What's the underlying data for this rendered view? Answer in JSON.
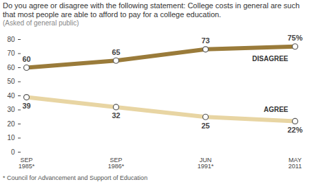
{
  "chart_data": {
    "type": "line",
    "title": "Do you agree or disagree with the following statement: College costs in general are such that most people are able to afford to pay for a college education.",
    "subtitle": "(Asked of general public)",
    "caption": "* Council for Advancement and Support of Education",
    "categories": [
      "SEP\n1985*",
      "SEP\n1986*",
      "JUN\n1991*",
      "MAY\n2011"
    ],
    "series": [
      {
        "name": "DISAGREE",
        "color": "#9a7b3a",
        "marker": "circle",
        "values": [
          60,
          65,
          73,
          75
        ],
        "value_labels": [
          "60",
          "65",
          "73",
          "75%"
        ]
      },
      {
        "name": "AGREE",
        "color": "#e8d5a3",
        "marker": "circle",
        "values": [
          39,
          32,
          25,
          22
        ],
        "value_labels": [
          "39",
          "32",
          "25",
          "22%"
        ]
      }
    ],
    "ylim": [
      0,
      80
    ],
    "yticks": [
      0,
      10,
      20,
      30,
      40,
      50,
      60,
      70,
      80
    ],
    "grid": false,
    "data_labels": true
  }
}
